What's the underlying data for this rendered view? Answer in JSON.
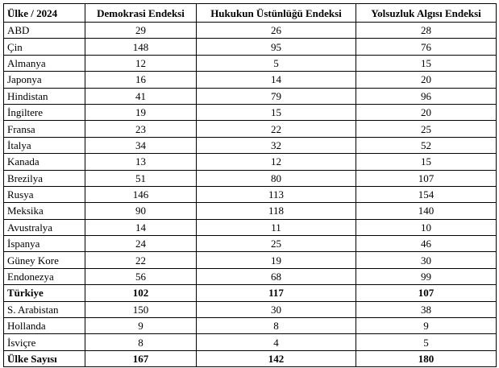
{
  "table": {
    "header": [
      "Ülke / 2024",
      "Demokrasi Endeksi",
      "Hukukun Üstünlüğü Endeksi",
      "Yolsuzluk Algısı Endeksi"
    ],
    "rows": [
      [
        "ABD",
        29,
        26,
        28
      ],
      [
        "Çin",
        148,
        95,
        76
      ],
      [
        "Almanya",
        12,
        5,
        15
      ],
      [
        "Japonya",
        16,
        14,
        20
      ],
      [
        "Hindistan",
        41,
        79,
        96
      ],
      [
        "İngiltere",
        19,
        15,
        20
      ],
      [
        "Fransa",
        23,
        22,
        25
      ],
      [
        "İtalya",
        34,
        32,
        52
      ],
      [
        "Kanada",
        13,
        12,
        15
      ],
      [
        "Brezilya",
        51,
        80,
        107
      ],
      [
        "Rusya",
        146,
        113,
        154
      ],
      [
        "Meksika",
        90,
        118,
        140
      ],
      [
        "Avustralya",
        14,
        11,
        10
      ],
      [
        "İspanya",
        24,
        25,
        46
      ],
      [
        "Güney Kore",
        22,
        19,
        30
      ],
      [
        "Endonezya",
        56,
        68,
        99
      ],
      [
        "Türkiye",
        102,
        117,
        107
      ],
      [
        "S. Arabistan",
        150,
        30,
        38
      ],
      [
        "Hollanda",
        9,
        8,
        9
      ],
      [
        "İsviçre",
        8,
        4,
        5
      ]
    ],
    "footer": [
      "Ülke Sayısı",
      167,
      142,
      180
    ]
  }
}
